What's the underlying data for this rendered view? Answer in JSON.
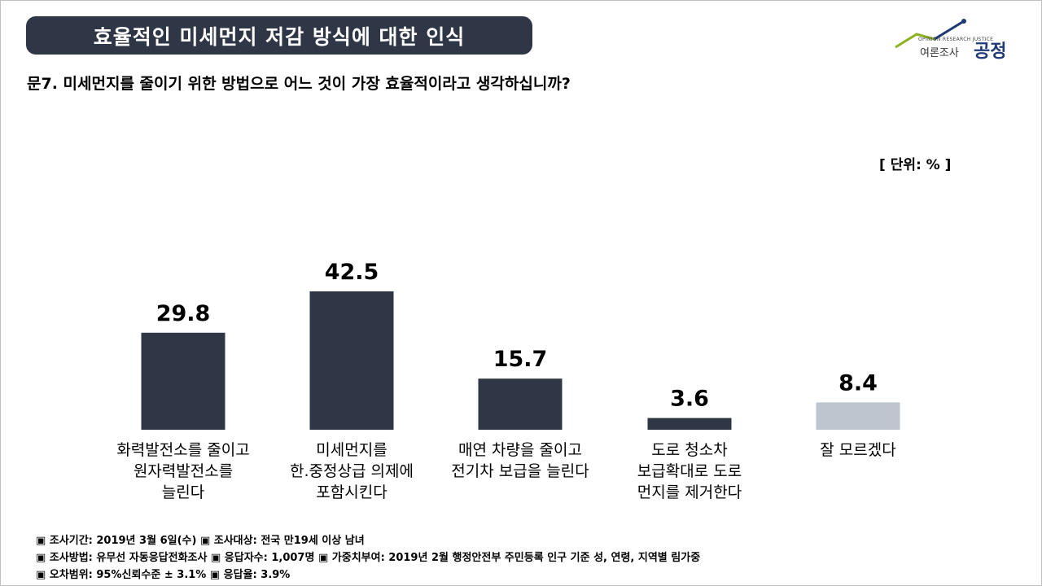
{
  "header": {
    "title": "효율적인 미세먼지 저감 방식에 대한 인식"
  },
  "logo": {
    "sub_text": "OPINION RESEARCH JUSTICE",
    "korean_name": "여론조사",
    "brand": "공정",
    "icon": "trend-line-logo-icon"
  },
  "question": "문7. 미세먼지를 줄이기 위한 방법으로 어느 것이 가장 효율적이라고 생각하십니까?",
  "unit_label": "[ 단위: % ]",
  "chart_data": {
    "type": "bar",
    "categories": [
      "화력발전소를 줄이고 원자력발전소를 늘린다",
      "미세먼지를 한.중정상급 의제에 포함시킨다",
      "매연 차량을 줄이고 전기차 보급을 늘린다",
      "도로 청소차 보급확대로 도로 먼지를 제거한다",
      "잘 모르겠다"
    ],
    "category_lines": [
      [
        "화력발전소를 줄이고",
        "원자력발전소를",
        "늘린다"
      ],
      [
        "미세먼지를",
        "한.중정상급 의제에",
        "포함시킨다"
      ],
      [
        "매연 차량을 줄이고",
        "전기차 보급을 늘린다"
      ],
      [
        "도로 청소차",
        "보급확대로 도로",
        "먼지를 제거한다"
      ],
      [
        "잘 모르겠다"
      ]
    ],
    "values": [
      29.8,
      42.5,
      15.7,
      3.6,
      8.4
    ],
    "value_labels": [
      "29.8",
      "42.5",
      "15.7",
      "3.6",
      "8.4"
    ],
    "colors": [
      "#2f3747",
      "#2f3747",
      "#2f3747",
      "#2f3747",
      "#bdc6cf"
    ],
    "ylim": [
      0,
      50
    ],
    "grid": false,
    "legend": "none"
  },
  "notes": [
    "▣ 조사기간: 2019년 3월 6일(수) ▣ 조사대상: 전국 만19세 이상 남녀",
    "▣ 조사방법: 유무선 자동응답전화조사 ▣ 응답자수: 1,007명 ▣ 가중치부여: 2019년 2월 행정안전부 주민등록 인구 기준 성, 연령, 지역별 림가중",
    "▣ 오차범위: 95%신뢰수준 ± 3.1% ▣ 응답율: 3.9%"
  ]
}
